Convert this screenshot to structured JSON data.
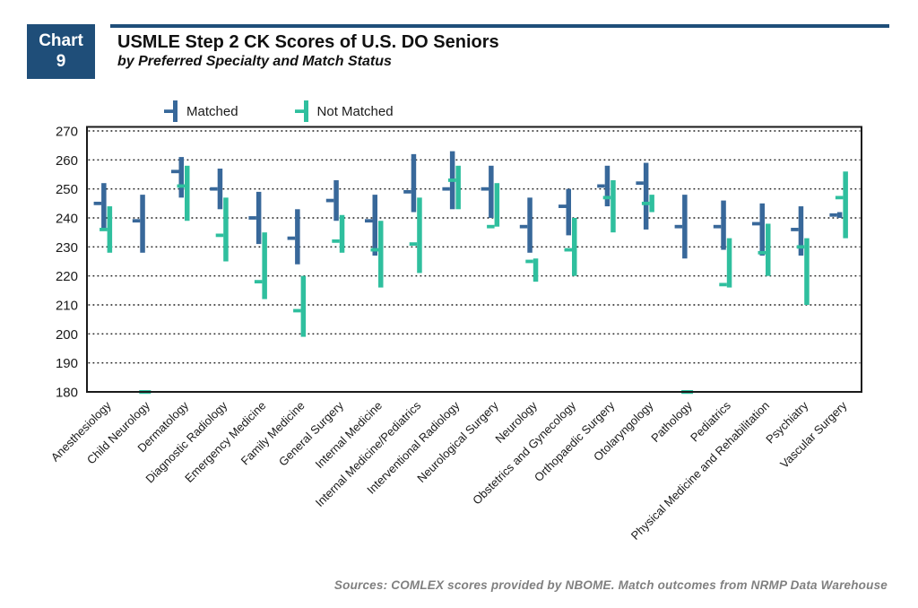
{
  "header": {
    "chart_label": "Chart",
    "chart_number": "9",
    "title": "USMLE Step 2 CK Scores of U.S. DO Seniors",
    "subtitle": "by Preferred Specialty and Match Status"
  },
  "legend": [
    {
      "label": "Matched",
      "color": "#38689A"
    },
    {
      "label": "Not Matched",
      "color": "#2FBF9E"
    }
  ],
  "source": "Sources: COMLEX scores provided by NBOME. Match outcomes from NRMP Data Warehouse",
  "colors": {
    "accent_navy": "#1F4E79",
    "matched_blue": "#38689A",
    "not_matched_teal": "#2FBF9E"
  },
  "chart_data": {
    "type": "range-bar-with-median-tick",
    "title": "USMLE Step 2 CK Scores of U.S. DO Seniors",
    "subtitle": "by Preferred Specialty and Match Status",
    "xlabel": "",
    "ylabel": "",
    "ylim": [
      180,
      270
    ],
    "ytick_step": 10,
    "grid": "dotted-horizontal",
    "legend_position": "top-left-above-plot",
    "categories": [
      "Anesthesiology",
      "Child Neurology",
      "Dermatology",
      "Diagnostic Radiology",
      "Emergency Medicine",
      "Family Medicine",
      "General Surgery",
      "Internal Medicine",
      "Internal Medicine/Pediatrics",
      "Interventional Radiology",
      "Neurological Surgery",
      "Neurology",
      "Obstetrics and Gynecology",
      "Orthopaedic Surgery",
      "Otolaryngology",
      "Pathology",
      "Pediatrics",
      "Physical Medicine and Rehabilitation",
      "Psychiatry",
      "Vascular Surgery"
    ],
    "series": [
      {
        "name": "Matched",
        "color": "#38689A",
        "points": [
          {
            "min": 236,
            "max": 252,
            "median": 245
          },
          {
            "min": 228,
            "max": 248,
            "median": 239
          },
          {
            "min": 247,
            "max": 261,
            "median": 256
          },
          {
            "min": 243,
            "max": 257,
            "median": 250
          },
          {
            "min": 231,
            "max": 249,
            "median": 240
          },
          {
            "min": 224,
            "max": 243,
            "median": 233
          },
          {
            "min": 239,
            "max": 253,
            "median": 246
          },
          {
            "min": 227,
            "max": 248,
            "median": 239
          },
          {
            "min": 242,
            "max": 262,
            "median": 249
          },
          {
            "min": 243,
            "max": 263,
            "median": 250
          },
          {
            "min": 240,
            "max": 258,
            "median": 250
          },
          {
            "min": 228,
            "max": 247,
            "median": 237
          },
          {
            "min": 234,
            "max": 250,
            "median": 244
          },
          {
            "min": 244,
            "max": 258,
            "median": 251
          },
          {
            "min": 236,
            "max": 259,
            "median": 252
          },
          {
            "min": 226,
            "max": 248,
            "median": 237
          },
          {
            "min": 229,
            "max": 246,
            "median": 237
          },
          {
            "min": 227,
            "max": 245,
            "median": 238
          },
          {
            "min": 227,
            "max": 244,
            "median": 236
          },
          {
            "min": 240,
            "max": 242,
            "median": 241
          }
        ]
      },
      {
        "name": "Not Matched",
        "color": "#2FBF9E",
        "points": [
          {
            "min": 228,
            "max": 244,
            "median": 236
          },
          {
            "min": 180,
            "max": 180,
            "median": 180
          },
          {
            "min": 239,
            "max": 258,
            "median": 251
          },
          {
            "min": 225,
            "max": 247,
            "median": 234
          },
          {
            "min": 212,
            "max": 235,
            "median": 218
          },
          {
            "min": 199,
            "max": 220,
            "median": 208
          },
          {
            "min": 228,
            "max": 241,
            "median": 232
          },
          {
            "min": 216,
            "max": 239,
            "median": 229
          },
          {
            "min": 221,
            "max": 247,
            "median": 231
          },
          {
            "min": 243,
            "max": 258,
            "median": 253
          },
          {
            "min": 237,
            "max": 252,
            "median": 237
          },
          {
            "min": 218,
            "max": 226,
            "median": 225
          },
          {
            "min": 220,
            "max": 240,
            "median": 229
          },
          {
            "min": 235,
            "max": 253,
            "median": 247
          },
          {
            "min": 242,
            "max": 248,
            "median": 245
          },
          {
            "min": 180,
            "max": 180,
            "median": 180
          },
          {
            "min": 216,
            "max": 233,
            "median": 217
          },
          {
            "min": 220,
            "max": 238,
            "median": 228
          },
          {
            "min": 210,
            "max": 233,
            "median": 230
          },
          {
            "min": 233,
            "max": 256,
            "median": 247
          }
        ]
      }
    ]
  }
}
